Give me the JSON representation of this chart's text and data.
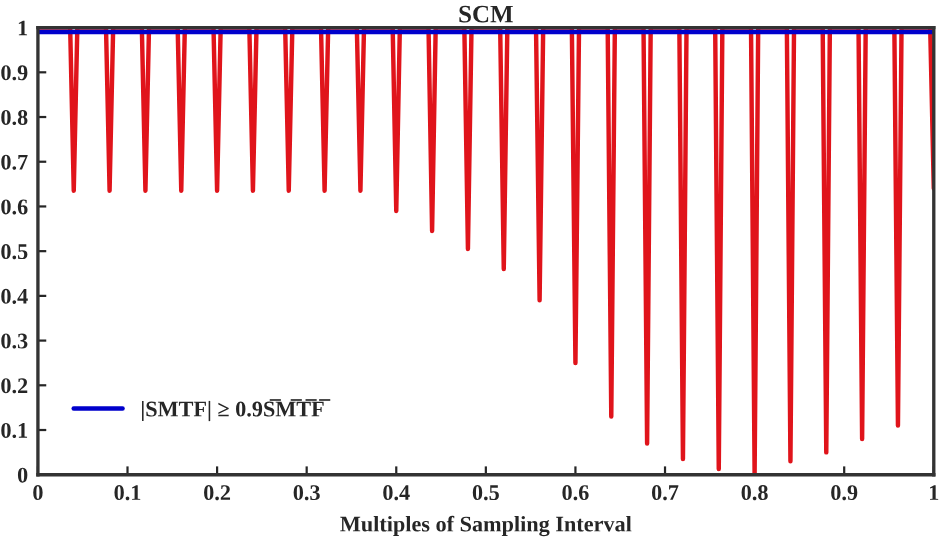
{
  "chart_data": {
    "type": "line",
    "title": "SCM",
    "xlabel": "Multiples of Sampling Interval",
    "xlim": [
      0,
      1
    ],
    "ylim": [
      0,
      1
    ],
    "xticks": [
      0,
      0.1,
      0.2,
      0.3,
      0.4,
      0.5,
      0.6,
      0.7,
      0.8,
      0.9,
      1
    ],
    "yticks": [
      0,
      0.1,
      0.2,
      0.3,
      0.4,
      0.5,
      0.6,
      0.7,
      0.8,
      0.9,
      1
    ],
    "grid": false,
    "legend": "bottom left",
    "marker": "none",
    "line_style": "solid",
    "series": [
      {
        "color": "#e0141b",
        "x": [
          0,
          0.036,
          0.04,
          0.044,
          0.076,
          0.08,
          0.084,
          0.116,
          0.12,
          0.124,
          0.156,
          0.16,
          0.164,
          0.196,
          0.2,
          0.204,
          0.236,
          0.24,
          0.244,
          0.276,
          0.28,
          0.284,
          0.316,
          0.32,
          0.324,
          0.356,
          0.36,
          0.364,
          0.396,
          0.4,
          0.404,
          0.436,
          0.44,
          0.444,
          0.476,
          0.48,
          0.484,
          0.516,
          0.52,
          0.524,
          0.556,
          0.56,
          0.564,
          0.596,
          0.6,
          0.604,
          0.636,
          0.64,
          0.644,
          0.676,
          0.68,
          0.684,
          0.716,
          0.72,
          0.724,
          0.756,
          0.76,
          0.764,
          0.796,
          0.8,
          0.804,
          0.836,
          0.84,
          0.844,
          0.876,
          0.88,
          0.884,
          0.916,
          0.92,
          0.924,
          0.956,
          0.96,
          0.964,
          0.996,
          1
        ],
        "values": [
          1,
          1,
          0.635,
          1,
          1,
          0.635,
          1,
          1,
          0.635,
          1,
          1,
          0.635,
          1,
          1,
          0.635,
          1,
          1,
          0.635,
          1,
          1,
          0.635,
          1,
          1,
          0.635,
          1,
          1,
          0.635,
          1,
          1,
          0.59,
          1,
          1,
          0.545,
          1,
          1,
          0.505,
          1,
          1,
          0.46,
          1,
          1,
          0.39,
          1,
          1,
          0.25,
          1,
          1,
          0.13,
          1,
          1,
          0.07,
          1,
          1,
          0.035,
          1,
          1,
          0.013,
          1,
          1,
          0.0,
          1,
          1,
          0.03,
          1,
          1,
          0.05,
          1,
          1,
          0.08,
          1,
          1,
          0.11,
          1,
          1,
          0.64
        ]
      },
      {
        "name": "|SMTF| ≥ 0.9S̅M̅T̅F̅",
        "color": "#0000cc",
        "x": [
          0,
          1
        ],
        "values": [
          0.99,
          0.99
        ]
      }
    ]
  }
}
